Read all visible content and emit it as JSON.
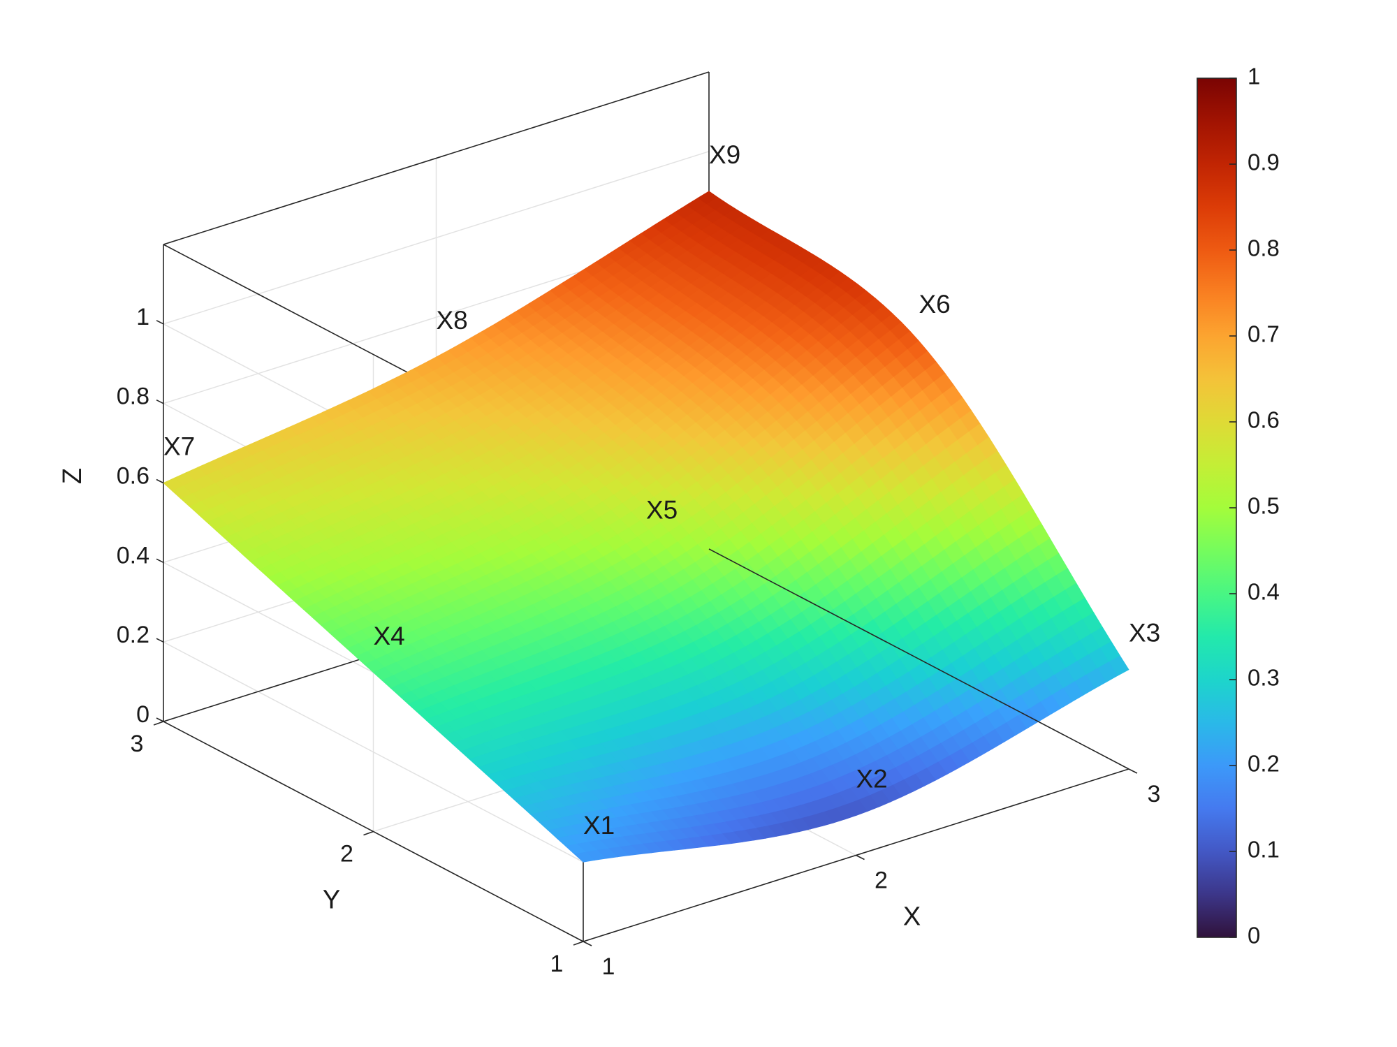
{
  "chart_data": {
    "type": "surface3d",
    "title": "",
    "xlabel": "X",
    "ylabel": "Y",
    "zlabel": "Z",
    "xlim": [
      1,
      3
    ],
    "ylim": [
      1,
      3
    ],
    "zlim": [
      0,
      1.2
    ],
    "x_ticks": [
      "1",
      "2",
      "3"
    ],
    "y_ticks": [
      "1",
      "2",
      "3"
    ],
    "z_ticks": [
      "0",
      "0.2",
      "0.4",
      "0.6",
      "0.8",
      "1"
    ],
    "grid": true,
    "colormap": "turbo",
    "colorbar": {
      "range": [
        0,
        1
      ],
      "ticks": [
        "0",
        "0.1",
        "0.2",
        "0.3",
        "0.4",
        "0.5",
        "0.6",
        "0.7",
        "0.8",
        "0.9",
        "1"
      ],
      "placement": "right"
    },
    "points": [
      {
        "label": "X1",
        "x": 1,
        "y": 1,
        "z": 0.2
      },
      {
        "label": "X2",
        "x": 2,
        "y": 1,
        "z": 0.1
      },
      {
        "label": "X3",
        "x": 3,
        "y": 1,
        "z": 0.25
      },
      {
        "label": "X4",
        "x": 1,
        "y": 2,
        "z": 0.4
      },
      {
        "label": "X5",
        "x": 2,
        "y": 2,
        "z": 0.5
      },
      {
        "label": "X6",
        "x": 3,
        "y": 2,
        "z": 0.8
      },
      {
        "label": "X7",
        "x": 1,
        "y": 3,
        "z": 0.6
      },
      {
        "label": "X8",
        "x": 2,
        "y": 3,
        "z": 0.7
      },
      {
        "label": "X9",
        "x": 3,
        "y": 3,
        "z": 0.9
      }
    ]
  }
}
